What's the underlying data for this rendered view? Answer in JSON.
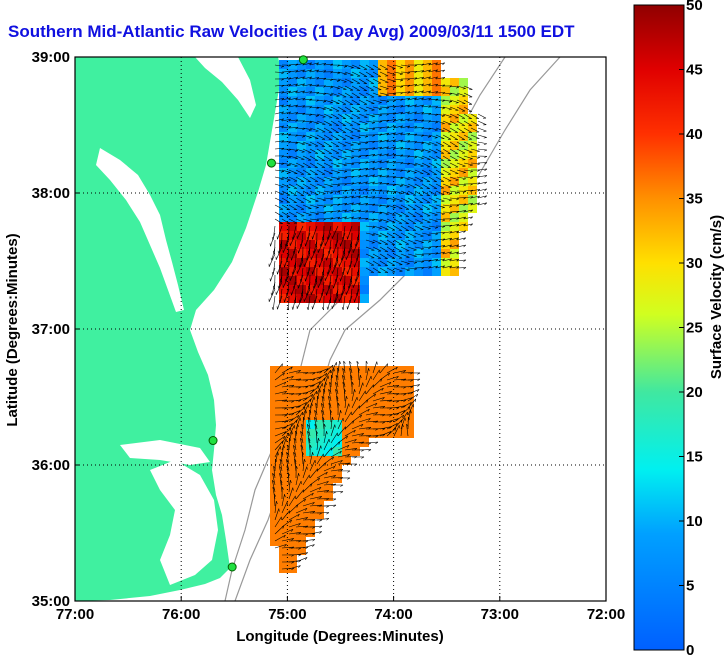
{
  "title": "Southern Mid-Atlantic Raw Velocities (1 Day Avg) 2009/03/11 1500 EDT",
  "map": {
    "xlabel": "Longitude (Degrees:Minutes)",
    "ylabel": "Latitude (Degrees:Minutes)",
    "lon_range": [
      -77,
      -72
    ],
    "lat_range": [
      35,
      39
    ],
    "x_ticks": [
      {
        "value": -77,
        "label": "77:00"
      },
      {
        "value": -76,
        "label": "76:00"
      },
      {
        "value": -75,
        "label": "75:00"
      },
      {
        "value": -74,
        "label": "74:00"
      },
      {
        "value": -73,
        "label": "73:00"
      },
      {
        "value": -72,
        "label": "72:00"
      }
    ],
    "y_ticks": [
      {
        "value": 35,
        "label": "35:00"
      },
      {
        "value": 36,
        "label": "36:00"
      },
      {
        "value": 37,
        "label": "37:00"
      },
      {
        "value": 38,
        "label": "38:00"
      },
      {
        "value": 39,
        "label": "39:00"
      }
    ],
    "land_color": "#40f0a0",
    "grid": "dotted"
  },
  "colorbar": {
    "label": "Surface Velocity (cm/s)",
    "min": 0,
    "max": 50,
    "ticks": [
      {
        "value": 0,
        "label": "0"
      },
      {
        "value": 5,
        "label": "5"
      },
      {
        "value": 10,
        "label": "10"
      },
      {
        "value": 15,
        "label": "15"
      },
      {
        "value": 20,
        "label": "20"
      },
      {
        "value": 25,
        "label": "25"
      },
      {
        "value": 30,
        "label": "30"
      },
      {
        "value": 35,
        "label": "35"
      },
      {
        "value": 40,
        "label": "40"
      },
      {
        "value": 45,
        "label": "45"
      },
      {
        "value": 50,
        "label": "50"
      }
    ],
    "colormap": "jet"
  },
  "stations": [
    {
      "lon": -74.85,
      "lat": 38.98
    },
    {
      "lon": -75.15,
      "lat": 38.22
    },
    {
      "lon": -75.7,
      "lat": 36.18
    },
    {
      "lon": -75.52,
      "lat": 35.25
    }
  ]
}
